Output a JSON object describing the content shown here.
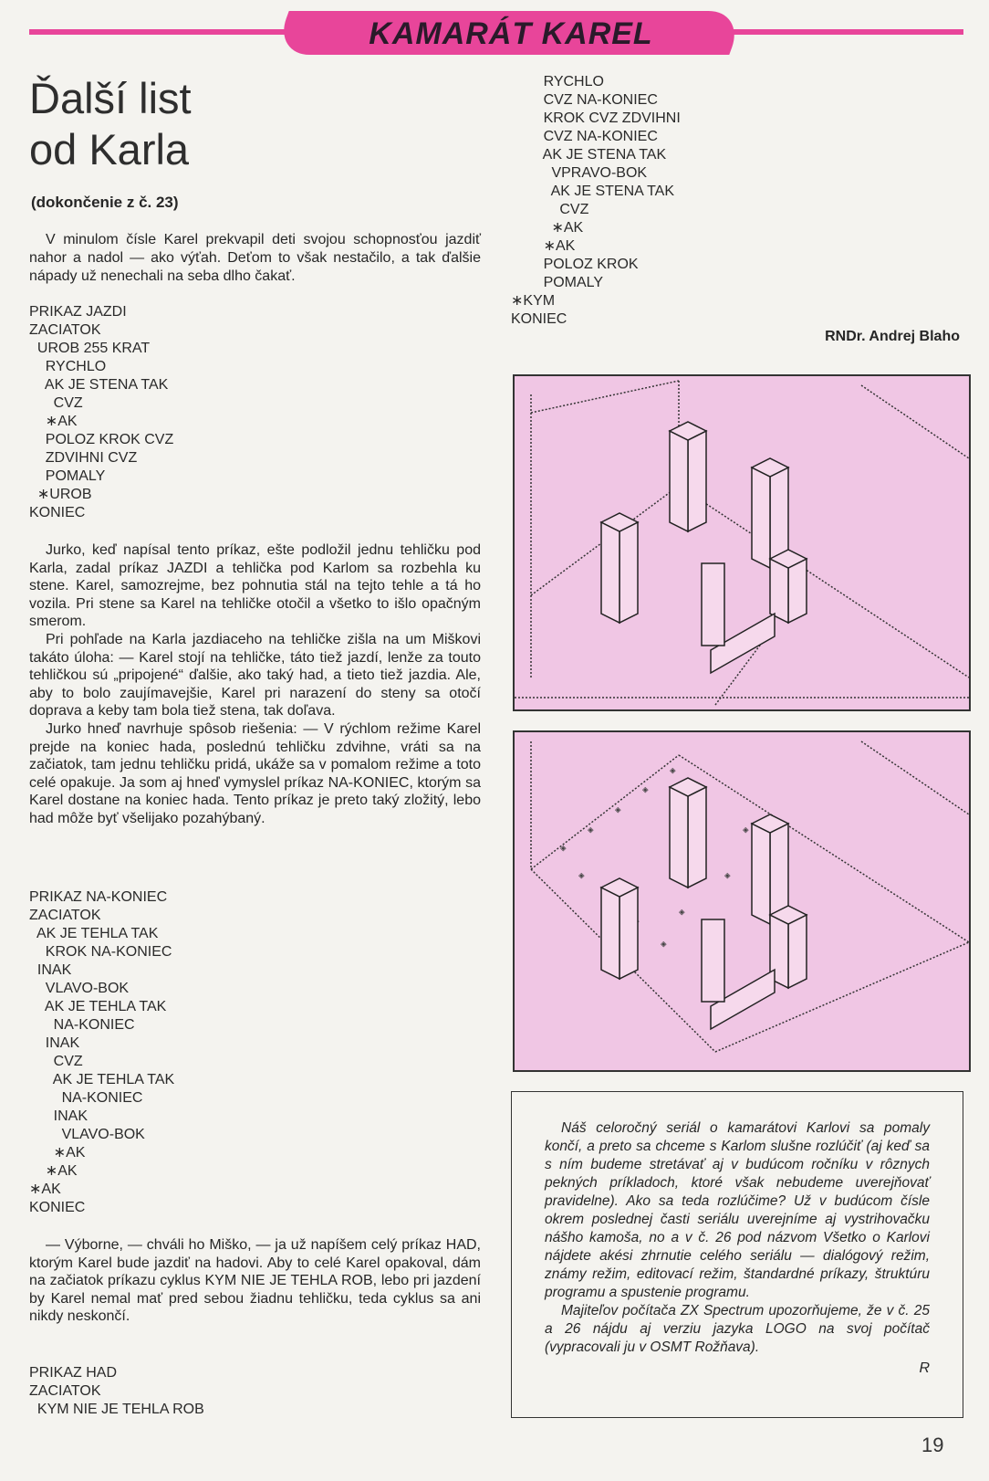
{
  "header": {
    "section": "KAMARÁT KAREL"
  },
  "article": {
    "title_line1": "Ďalší list",
    "title_line2": "od Karla",
    "subtitle": "(dokončenie z č. 23)",
    "lead": "V minulom čísle Karel prekvapil deti svojou schopnosťou jazdiť nahor a nadol — ako výťah. Deťom to však nestačilo, a tak ďalšie nápady už nenechali na seba dlho čakať.",
    "code_jazdi": [
      "PRIKAZ JAZDI",
      "ZACIATOK",
      "  UROB 255 KRAT",
      "    RYCHLO",
      "    AK JE STENA TAK",
      "      CVZ",
      "    ∗AK",
      "    POLOZ KROK CVZ",
      "    ZDVIHNI CVZ",
      "    POMALY",
      "  ∗UROB",
      "KONIEC"
    ],
    "para1": [
      "Jurko, keď napísal tento príkaz, ešte podložil jednu tehličku pod Karla, zadal príkaz JAZDI a tehlička pod Karlom sa rozbehla ku stene. Karel, samozrejme, bez pohnutia stál na tejto tehle a tá ho vozila. Pri stene sa Karel na tehličke otočil a všetko to išlo opačným smerom.",
      "Pri pohľade na Karla jazdiaceho na tehličke zišla na um Miškovi takáto úloha: — Karel stojí na tehličke, táto tiež jazdí, lenže za touto tehličkou sú „pripojené“ ďalšie, ako taký had, a tieto tiež jazdia. Ale, aby to bolo zaujímavejšie, Karel pri narazení do steny sa otočí doprava a keby tam bola tiež stena, tak doľava.",
      "Jurko hneď navrhuje spôsob riešenia: — V rýchlom režime Karel prejde na koniec hada, poslednú tehličku zdvihne, vráti sa na začiatok, tam jednu tehličku pridá, ukáže sa v pomalom režime a toto celé opakuje. Ja som aj hneď vymyslel príkaz NA-KONIEC, ktorým sa Karel dostane na koniec hada. Tento príkaz je preto taký zložitý, lebo had môže byť všelijako pozahýbaný."
    ],
    "code_nakoniec": [
      "PRIKAZ NA-KONIEC",
      "ZACIATOK",
      "  AK JE TEHLA TAK",
      "    KROK NA-KONIEC",
      "  INAK",
      "    VLAVO-BOK",
      "    AK JE TEHLA TAK",
      "      NA-KONIEC",
      "    INAK",
      "      CVZ",
      "      AK JE TEHLA TAK",
      "        NA-KONIEC",
      "      INAK",
      "        VLAVO-BOK",
      "      ∗AK",
      "    ∗AK",
      "∗AK",
      "KONIEC"
    ],
    "para2": "— Výborne, — chváli ho Miško, — ja už napíšem celý príkaz HAD, ktorým Karel bude jazdiť na hadovi. Aby to celé Karel opakoval, dám na začiatok príkazu cyklus KYM NIE JE TEHLA ROB, lebo pri jazdení by Karel nemal mať pred sebou žiadnu tehličku, teda cyklus sa ani nikdy neskončí.",
    "code_had": [
      "PRIKAZ HAD",
      "ZACIATOK",
      "  KYM NIE JE TEHLA ROB"
    ],
    "code_had_cont": [
      "        RYCHLO",
      "        CVZ NA-KONIEC",
      "        KROK CVZ ZDVIHNI",
      "        CVZ NA-KONIEC",
      "        AK JE STENA TAK",
      "          VPRAVO-BOK",
      "          AK JE STENA TAK",
      "            CVZ",
      "          ∗AK",
      "        ∗AK",
      "        POLOZ KROK",
      "        POMALY",
      "∗KYM",
      "KONIEC"
    ],
    "author": "RNDr. Andrej Blaho"
  },
  "note": {
    "p1": "Náš celoročný seriál o kamarátovi Karlovi sa pomaly končí, a preto sa chceme s Karlom slušne rozlúčiť (aj keď sa s ním budeme stretávať aj v budúcom ročníku v rôznych pekných príkladoch, ktoré však nebudeme uverejňovať pravidelne). Ako sa teda rozlúčime? Už v budúcom čísle okrem poslednej časti seriálu uverejníme aj vystrihovačku nášho kamoša, no a v č. 26 pod názvom Všetko o Karlovi nájdete akési zhrnutie celého seriálu — dialógový režim, známy režim, editovací režim, štandardné príkazy, štruktúru programu a spustenie programu.",
    "p2": "Majiteľov počítača ZX Spectrum upozorňujeme, že v č. 25 a 26 nájdu aj verziu jazyka LOGO na svoj počítač (vypracovali ju v OSMT Rožňava).",
    "sign": "R"
  },
  "page_number": "19",
  "colors": {
    "accent": "#e8459a",
    "screen_bg": "#f0c6e4",
    "ink": "#262626"
  }
}
